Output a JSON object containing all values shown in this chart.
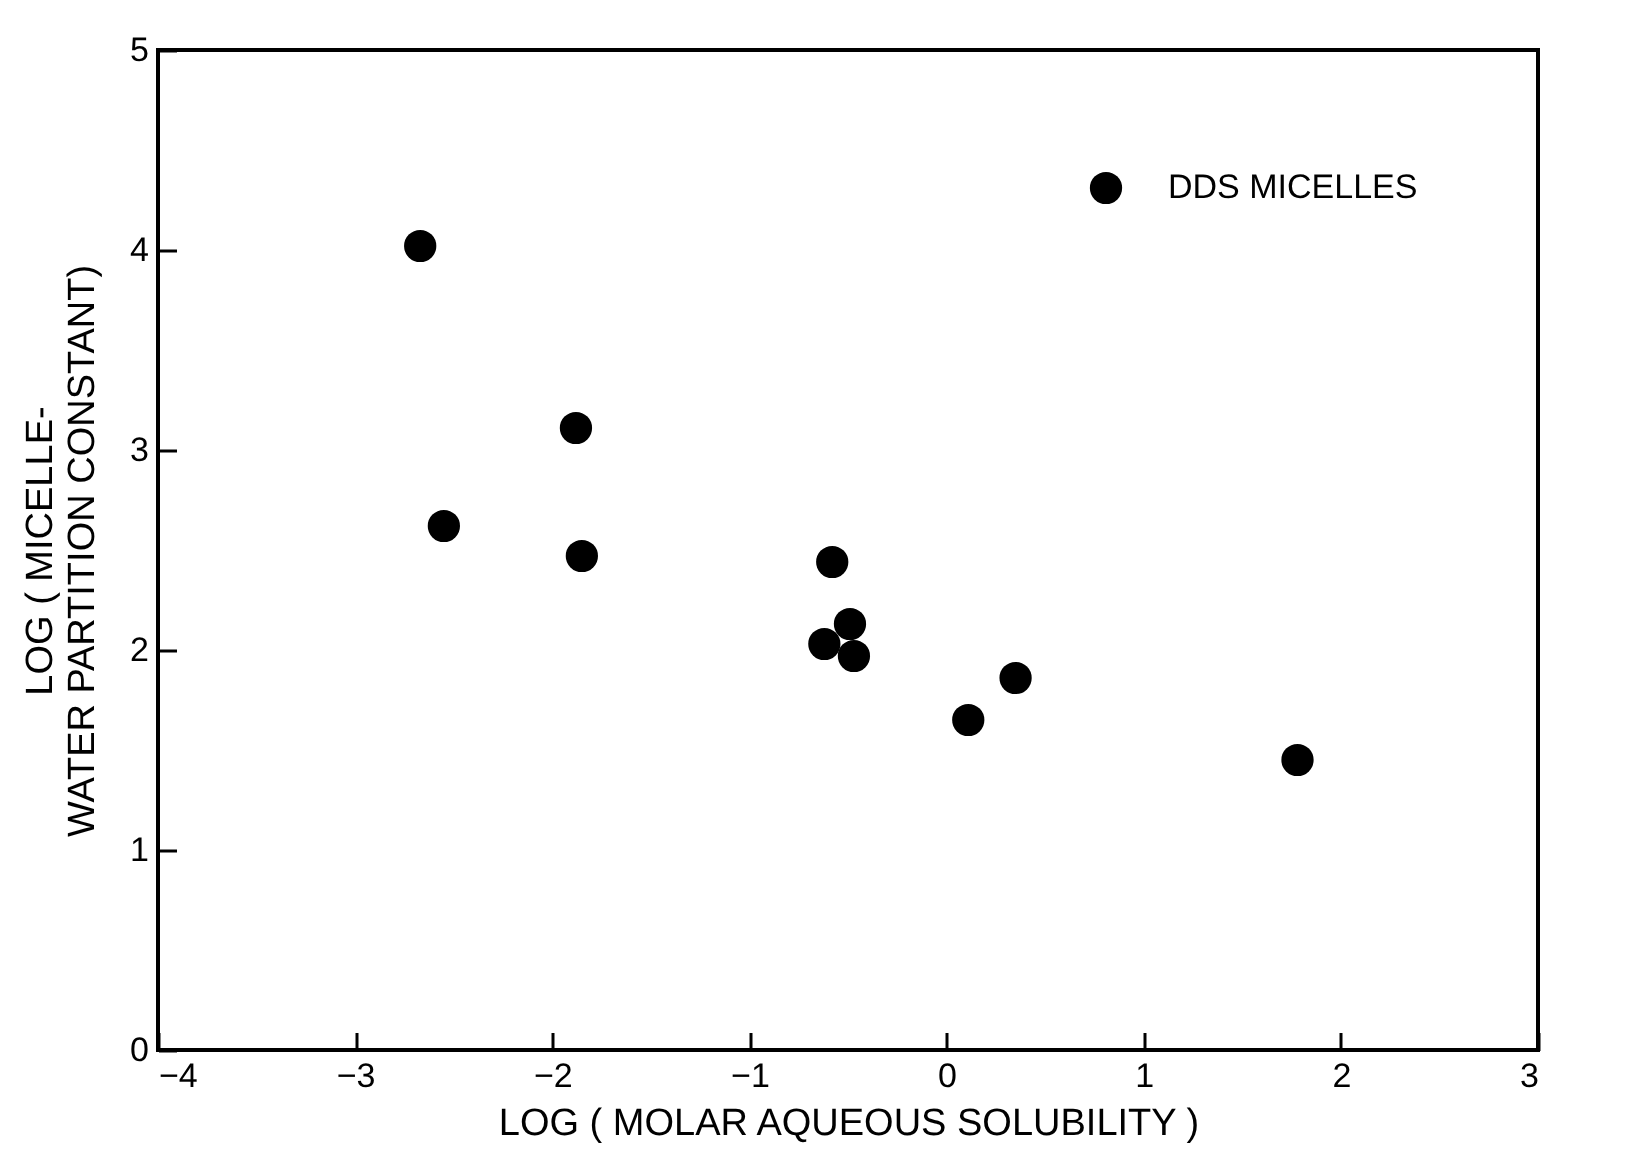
{
  "chart_data": {
    "type": "scatter",
    "xlabel": "LOG ( MOLAR AQUEOUS SOLUBILITY )",
    "ylabel": "LOG ( MICELLE-\nWATER PARTITION CONSTANT)",
    "x": [
      -2.67,
      -2.55,
      -1.88,
      -1.85,
      -0.58,
      -0.49,
      -0.62,
      -0.47,
      0.11,
      0.35,
      1.78
    ],
    "series": [
      {
        "name": "DDS MICELLES",
        "color": "#000000",
        "values": [
          4.02,
          2.62,
          3.11,
          2.47,
          2.44,
          2.13,
          2.03,
          1.97,
          1.65,
          1.86,
          1.45
        ]
      }
    ],
    "xlim": [
      -4,
      3
    ],
    "xticks": [
      -4,
      -3,
      -2,
      -1,
      0,
      1,
      2,
      3
    ],
    "ylim": [
      0,
      5
    ],
    "yticks": [
      0,
      1,
      2,
      3,
      4,
      5
    ],
    "marker": "circle",
    "legend": "top right",
    "grid": false
  }
}
